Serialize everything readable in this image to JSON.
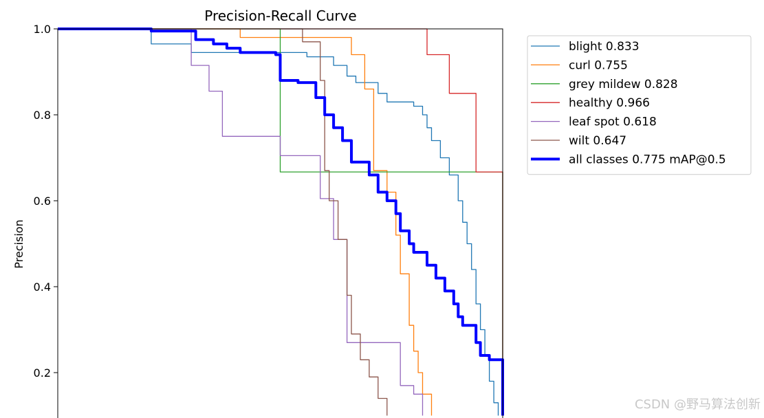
{
  "chart_data": {
    "type": "line",
    "title": "Precision-Recall Curve",
    "xlabel": "",
    "ylabel": "Precision",
    "xlim": [
      0,
      1
    ],
    "ylim": [
      0.1,
      1.0
    ],
    "yticks": [
      0.2,
      0.4,
      0.6,
      0.8,
      1.0
    ],
    "ytick_labels": [
      "0.2",
      "0.4",
      "0.6",
      "0.8",
      "1.0"
    ],
    "legend_position": "outside-right",
    "watermark": "CSDN @野马算法创新",
    "series": [
      {
        "name": "blight 0.833",
        "color": "#1f77b4",
        "width": 1.3,
        "points": [
          [
            0,
            1
          ],
          [
            0.21,
            1
          ],
          [
            0.21,
            0.965
          ],
          [
            0.3,
            0.965
          ],
          [
            0.3,
            0.945
          ],
          [
            0.56,
            0.945
          ],
          [
            0.56,
            0.935
          ],
          [
            0.62,
            0.935
          ],
          [
            0.62,
            0.915
          ],
          [
            0.65,
            0.915
          ],
          [
            0.65,
            0.89
          ],
          [
            0.67,
            0.89
          ],
          [
            0.67,
            0.875
          ],
          [
            0.72,
            0.875
          ],
          [
            0.72,
            0.85
          ],
          [
            0.74,
            0.85
          ],
          [
            0.74,
            0.83
          ],
          [
            0.8,
            0.83
          ],
          [
            0.8,
            0.82
          ],
          [
            0.82,
            0.82
          ],
          [
            0.82,
            0.8
          ],
          [
            0.83,
            0.8
          ],
          [
            0.83,
            0.77
          ],
          [
            0.84,
            0.77
          ],
          [
            0.84,
            0.74
          ],
          [
            0.86,
            0.74
          ],
          [
            0.86,
            0.7
          ],
          [
            0.88,
            0.7
          ],
          [
            0.88,
            0.66
          ],
          [
            0.9,
            0.66
          ],
          [
            0.9,
            0.6
          ],
          [
            0.91,
            0.6
          ],
          [
            0.91,
            0.55
          ],
          [
            0.92,
            0.55
          ],
          [
            0.92,
            0.5
          ],
          [
            0.93,
            0.5
          ],
          [
            0.93,
            0.44
          ],
          [
            0.94,
            0.44
          ],
          [
            0.94,
            0.36
          ],
          [
            0.95,
            0.36
          ],
          [
            0.95,
            0.3
          ],
          [
            0.96,
            0.3
          ],
          [
            0.96,
            0.24
          ],
          [
            0.97,
            0.24
          ],
          [
            0.97,
            0.18
          ],
          [
            0.98,
            0.18
          ],
          [
            0.98,
            0.13
          ],
          [
            0.99,
            0.13
          ],
          [
            0.99,
            0.1
          ]
        ]
      },
      {
        "name": "curl 0.755",
        "color": "#ff7f0e",
        "width": 1.3,
        "points": [
          [
            0,
            1
          ],
          [
            0.41,
            1
          ],
          [
            0.41,
            0.98
          ],
          [
            0.66,
            0.98
          ],
          [
            0.66,
            0.94
          ],
          [
            0.69,
            0.94
          ],
          [
            0.69,
            0.86
          ],
          [
            0.71,
            0.86
          ],
          [
            0.71,
            0.67
          ],
          [
            0.74,
            0.67
          ],
          [
            0.74,
            0.62
          ],
          [
            0.76,
            0.62
          ],
          [
            0.76,
            0.52
          ],
          [
            0.77,
            0.52
          ],
          [
            0.77,
            0.43
          ],
          [
            0.79,
            0.43
          ],
          [
            0.79,
            0.31
          ],
          [
            0.8,
            0.31
          ],
          [
            0.8,
            0.25
          ],
          [
            0.81,
            0.25
          ],
          [
            0.81,
            0.2
          ],
          [
            0.82,
            0.2
          ],
          [
            0.82,
            0.15
          ],
          [
            0.84,
            0.15
          ],
          [
            0.84,
            0.1
          ]
        ]
      },
      {
        "name": "grey mildew 0.828",
        "color": "#2ca02c",
        "width": 1.3,
        "points": [
          [
            0,
            1
          ],
          [
            0.5,
            1
          ],
          [
            0.5,
            0.667
          ],
          [
            1.0,
            0.667
          ],
          [
            1.0,
            0.1
          ]
        ]
      },
      {
        "name": "healthy 0.966",
        "color": "#d62728",
        "width": 1.3,
        "points": [
          [
            0,
            1
          ],
          [
            0.83,
            1
          ],
          [
            0.83,
            0.94
          ],
          [
            0.88,
            0.94
          ],
          [
            0.88,
            0.85
          ],
          [
            0.94,
            0.85
          ],
          [
            0.94,
            0.667
          ],
          [
            1.0,
            0.667
          ],
          [
            1.0,
            0.1
          ]
        ]
      },
      {
        "name": "leaf spot 0.618",
        "color": "#9467bd",
        "width": 1.3,
        "points": [
          [
            0,
            1
          ],
          [
            0.3,
            1
          ],
          [
            0.3,
            0.915
          ],
          [
            0.34,
            0.915
          ],
          [
            0.34,
            0.855
          ],
          [
            0.37,
            0.855
          ],
          [
            0.37,
            0.75
          ],
          [
            0.5,
            0.75
          ],
          [
            0.5,
            0.705
          ],
          [
            0.59,
            0.705
          ],
          [
            0.59,
            0.605
          ],
          [
            0.62,
            0.605
          ],
          [
            0.62,
            0.51
          ],
          [
            0.65,
            0.51
          ],
          [
            0.65,
            0.27
          ],
          [
            0.77,
            0.27
          ],
          [
            0.77,
            0.17
          ],
          [
            0.8,
            0.17
          ],
          [
            0.8,
            0.15
          ],
          [
            0.82,
            0.15
          ],
          [
            0.82,
            0.1
          ]
        ]
      },
      {
        "name": "wilt 0.647",
        "color": "#8c564b",
        "width": 1.3,
        "points": [
          [
            0,
            1
          ],
          [
            0.55,
            1
          ],
          [
            0.55,
            0.97
          ],
          [
            0.59,
            0.97
          ],
          [
            0.59,
            0.88
          ],
          [
            0.6,
            0.88
          ],
          [
            0.6,
            0.67
          ],
          [
            0.61,
            0.67
          ],
          [
            0.61,
            0.6
          ],
          [
            0.63,
            0.6
          ],
          [
            0.63,
            0.51
          ],
          [
            0.65,
            0.51
          ],
          [
            0.65,
            0.38
          ],
          [
            0.66,
            0.38
          ],
          [
            0.66,
            0.29
          ],
          [
            0.68,
            0.29
          ],
          [
            0.68,
            0.23
          ],
          [
            0.7,
            0.23
          ],
          [
            0.7,
            0.19
          ],
          [
            0.72,
            0.19
          ],
          [
            0.72,
            0.14
          ],
          [
            0.74,
            0.14
          ],
          [
            0.74,
            0.1
          ]
        ]
      },
      {
        "name": "all classes 0.775 mAP@0.5",
        "color": "#0000ff",
        "width": 4,
        "points": [
          [
            0,
            1
          ],
          [
            0.21,
            1
          ],
          [
            0.21,
            0.995
          ],
          [
            0.31,
            0.995
          ],
          [
            0.31,
            0.975
          ],
          [
            0.35,
            0.975
          ],
          [
            0.35,
            0.965
          ],
          [
            0.38,
            0.965
          ],
          [
            0.38,
            0.955
          ],
          [
            0.41,
            0.955
          ],
          [
            0.41,
            0.945
          ],
          [
            0.49,
            0.945
          ],
          [
            0.49,
            0.94
          ],
          [
            0.5,
            0.94
          ],
          [
            0.5,
            0.88
          ],
          [
            0.54,
            0.88
          ],
          [
            0.54,
            0.875
          ],
          [
            0.58,
            0.875
          ],
          [
            0.58,
            0.84
          ],
          [
            0.6,
            0.84
          ],
          [
            0.6,
            0.8
          ],
          [
            0.62,
            0.8
          ],
          [
            0.62,
            0.77
          ],
          [
            0.64,
            0.77
          ],
          [
            0.64,
            0.74
          ],
          [
            0.66,
            0.74
          ],
          [
            0.66,
            0.69
          ],
          [
            0.7,
            0.69
          ],
          [
            0.7,
            0.66
          ],
          [
            0.72,
            0.66
          ],
          [
            0.72,
            0.62
          ],
          [
            0.74,
            0.62
          ],
          [
            0.74,
            0.6
          ],
          [
            0.76,
            0.6
          ],
          [
            0.76,
            0.57
          ],
          [
            0.77,
            0.57
          ],
          [
            0.77,
            0.53
          ],
          [
            0.79,
            0.53
          ],
          [
            0.79,
            0.5
          ],
          [
            0.8,
            0.5
          ],
          [
            0.8,
            0.48
          ],
          [
            0.83,
            0.48
          ],
          [
            0.83,
            0.45
          ],
          [
            0.85,
            0.45
          ],
          [
            0.85,
            0.42
          ],
          [
            0.87,
            0.42
          ],
          [
            0.87,
            0.39
          ],
          [
            0.89,
            0.39
          ],
          [
            0.89,
            0.36
          ],
          [
            0.9,
            0.36
          ],
          [
            0.9,
            0.33
          ],
          [
            0.91,
            0.33
          ],
          [
            0.91,
            0.31
          ],
          [
            0.94,
            0.31
          ],
          [
            0.94,
            0.27
          ],
          [
            0.95,
            0.27
          ],
          [
            0.95,
            0.24
          ],
          [
            0.97,
            0.24
          ],
          [
            0.97,
            0.23
          ],
          [
            1.0,
            0.23
          ],
          [
            1.0,
            0.1
          ]
        ]
      }
    ]
  }
}
